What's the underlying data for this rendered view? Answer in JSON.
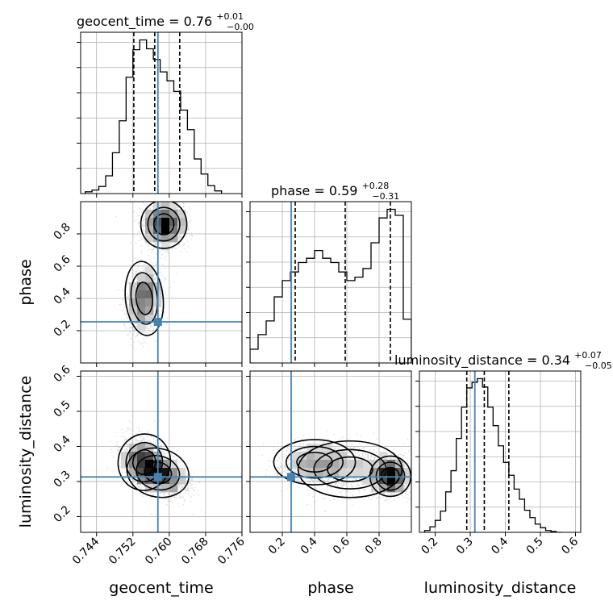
{
  "chart_data": {
    "type": "corner",
    "parameters": [
      "geocent_time",
      "phase",
      "luminosity_distance"
    ],
    "truth": {
      "geocent_time": 0.7575,
      "phase": 0.255,
      "luminosity_distance": 0.313
    },
    "truth_color": "#4682b4",
    "ranges": {
      "geocent_time": [
        0.7405,
        0.776
      ],
      "phase": [
        0.0,
        1.0
      ],
      "luminosity_distance": [
        0.155,
        0.615
      ]
    },
    "ticks": {
      "geocent_time": [
        "0.744",
        "0.752",
        "0.760",
        "0.768",
        "0.776"
      ],
      "phase": [
        "0.2",
        "0.4",
        "0.6",
        "0.8"
      ],
      "luminosity_distance": [
        "0.2",
        "0.3",
        "0.4",
        "0.5",
        "0.6"
      ]
    },
    "titles": [
      {
        "param": "geocent_time",
        "text": "geocent_time = 0.76",
        "sup": "+0.01",
        "sub": "−0.00"
      },
      {
        "param": "phase",
        "text": "phase = 0.59",
        "sup": "+0.28",
        "sub": "−0.31"
      },
      {
        "param": "luminosity_distance",
        "text": "luminosity_distance = 0.34",
        "sup": "+0.07",
        "sub": "−0.05"
      }
    ],
    "quantiles": {
      "geocent_time": [
        0.7522,
        0.7568,
        0.7623
      ],
      "phase": [
        0.28,
        0.59,
        0.87
      ],
      "luminosity_distance": [
        0.29,
        0.34,
        0.41
      ]
    },
    "histograms": {
      "geocent_time": {
        "edges": [
          0.7415,
          0.743,
          0.7445,
          0.746,
          0.7475,
          0.749,
          0.7505,
          0.752,
          0.7535,
          0.755,
          0.7565,
          0.758,
          0.7595,
          0.761,
          0.7625,
          0.764,
          0.7655,
          0.767,
          0.7685,
          0.77,
          0.7715
        ],
        "counts": [
          2,
          4,
          8,
          20,
          46,
          82,
          131,
          162,
          173,
          163,
          151,
          137,
          127,
          115,
          94,
          72,
          39,
          22,
          9,
          3
        ]
      },
      "phase": {
        "edges": [
          0.0,
          0.05,
          0.1,
          0.15,
          0.2,
          0.25,
          0.3,
          0.35,
          0.4,
          0.45,
          0.5,
          0.55,
          0.6,
          0.65,
          0.7,
          0.75,
          0.8,
          0.85,
          0.9,
          0.95,
          1.0
        ],
        "counts": [
          16,
          33,
          49,
          77,
          96,
          106,
          117,
          122,
          131,
          122,
          117,
          106,
          96,
          100,
          110,
          140,
          169,
          179,
          172,
          51
        ]
      },
      "luminosity_distance": {
        "edges": [
          0.17,
          0.185,
          0.2,
          0.215,
          0.23,
          0.245,
          0.26,
          0.275,
          0.29,
          0.305,
          0.32,
          0.335,
          0.35,
          0.365,
          0.38,
          0.395,
          0.41,
          0.425,
          0.44,
          0.455,
          0.47,
          0.485,
          0.5,
          0.515,
          0.53,
          0.545,
          0.56
        ],
        "counts": [
          2,
          6,
          13,
          23,
          44,
          67,
          102,
          136,
          157,
          163,
          167,
          158,
          136,
          116,
          94,
          76,
          62,
          47,
          36,
          24,
          16,
          9,
          5,
          2,
          1,
          0
        ]
      }
    },
    "grid": true,
    "xlabels": [
      "geocent_time",
      "phase",
      "luminosity_distance"
    ],
    "ylabels": [
      "phase",
      "luminosity_distance"
    ]
  }
}
